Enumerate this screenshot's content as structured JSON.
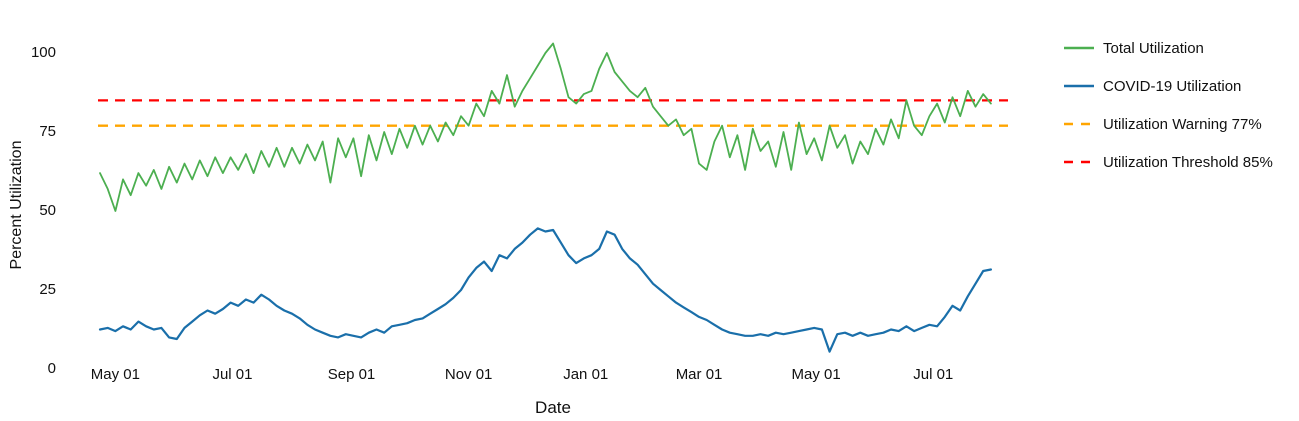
{
  "chart_data": {
    "type": "line",
    "xlabel": "Date",
    "ylabel": "Percent Utilization",
    "ylim": [
      0,
      105
    ],
    "grid": false,
    "legend_position": "right-outside",
    "x_ticks": [
      {
        "label": "May 01",
        "day": 8
      },
      {
        "label": "Jul 01",
        "day": 69
      },
      {
        "label": "Sep 01",
        "day": 131
      },
      {
        "label": "Nov 01",
        "day": 192
      },
      {
        "label": "Jan 01",
        "day": 253
      },
      {
        "label": "Mar 01",
        "day": 312
      },
      {
        "label": "May 01",
        "day": 373
      },
      {
        "label": "Jul 01",
        "day": 434
      }
    ],
    "y_ticks": [
      {
        "label": "0",
        "value": 0
      },
      {
        "label": "25",
        "value": 25
      },
      {
        "label": "50",
        "value": 50
      },
      {
        "label": "75",
        "value": 75
      },
      {
        "label": "100",
        "value": 100
      }
    ],
    "days": [
      0,
      4,
      8,
      12,
      16,
      20,
      24,
      28,
      32,
      36,
      40,
      44,
      48,
      52,
      56,
      60,
      64,
      68,
      72,
      76,
      80,
      84,
      88,
      92,
      96,
      100,
      104,
      108,
      112,
      116,
      120,
      124,
      128,
      132,
      136,
      140,
      144,
      148,
      152,
      156,
      160,
      164,
      168,
      172,
      176,
      180,
      184,
      188,
      192,
      196,
      200,
      204,
      208,
      212,
      216,
      220,
      224,
      228,
      232,
      236,
      240,
      244,
      248,
      252,
      256,
      260,
      264,
      268,
      272,
      276,
      280,
      284,
      288,
      292,
      296,
      300,
      304,
      308,
      312,
      316,
      320,
      324,
      328,
      332,
      336,
      340,
      344,
      348,
      352,
      356,
      360,
      364,
      368,
      372,
      376,
      380,
      384,
      388,
      392,
      396,
      400,
      404,
      408,
      412,
      416,
      420,
      424,
      428,
      432,
      436,
      440,
      444,
      448,
      452,
      456,
      460,
      464
    ],
    "series": [
      {
        "name": "Total Utilization",
        "color": "#4CAF50",
        "style": "solid",
        "width": 1.8,
        "values": [
          62,
          57,
          50,
          60,
          55,
          62,
          58,
          63,
          57,
          64,
          59,
          65,
          60,
          66,
          61,
          67,
          62,
          67,
          63,
          68,
          62,
          69,
          64,
          70,
          64,
          70,
          65,
          71,
          66,
          72,
          59,
          73,
          67,
          73,
          61,
          74,
          66,
          75,
          68,
          76,
          70,
          77,
          71,
          77,
          72,
          78,
          74,
          80,
          77,
          84,
          80,
          88,
          84,
          93,
          83,
          88,
          92,
          96,
          100,
          103,
          95,
          86,
          84,
          87,
          88,
          95,
          100,
          94,
          91,
          88,
          86,
          89,
          83,
          80,
          77,
          79,
          74,
          76,
          65,
          63,
          72,
          77,
          67,
          74,
          63,
          76,
          69,
          72,
          64,
          75,
          63,
          78,
          68,
          73,
          66,
          77,
          70,
          74,
          65,
          72,
          68,
          76,
          71,
          79,
          73,
          85,
          77,
          74,
          80,
          84,
          78,
          86,
          80,
          88,
          83,
          87,
          84
        ]
      },
      {
        "name": "COVID-19 Utilization",
        "color": "#1A6FAA",
        "style": "solid",
        "width": 2.2,
        "values": [
          12.5,
          13,
          12,
          13.5,
          12.5,
          15,
          13.5,
          12.5,
          13,
          10,
          9.5,
          13,
          15,
          17,
          18.5,
          17.5,
          19,
          21,
          20,
          22,
          21,
          23.5,
          22,
          20,
          18.5,
          17.5,
          16,
          14,
          12.5,
          11.5,
          10.5,
          10,
          11,
          10.5,
          10,
          11.5,
          12.5,
          11.5,
          13.5,
          14,
          14.5,
          15.5,
          16,
          17.5,
          19,
          20.5,
          22.5,
          25,
          29,
          32,
          34,
          31,
          36,
          35,
          38,
          40,
          42.5,
          44.5,
          43.5,
          44,
          40,
          36,
          33.5,
          35,
          36,
          38,
          43.5,
          42.5,
          38,
          35,
          33,
          30,
          27,
          25,
          23,
          21,
          19.5,
          18,
          16.5,
          15.5,
          14,
          12.5,
          11.5,
          11,
          10.5,
          10.5,
          11,
          10.5,
          11.5,
          11,
          11.5,
          12,
          12.5,
          13,
          12.5,
          5.5,
          11,
          11.5,
          10.5,
          11.5,
          10.5,
          11,
          11.5,
          12.5,
          12,
          13.5,
          12,
          13,
          14,
          13.5,
          16.5,
          20,
          18.5,
          23,
          27,
          31,
          31.5
        ]
      }
    ],
    "reference_lines": [
      {
        "name": "Utilization Warning 77%",
        "value": 77,
        "color": "#FFA500",
        "style": "dashed"
      },
      {
        "name": "Utilization Threshold 85%",
        "value": 85,
        "color": "#FF0000",
        "style": "dashed"
      }
    ]
  }
}
